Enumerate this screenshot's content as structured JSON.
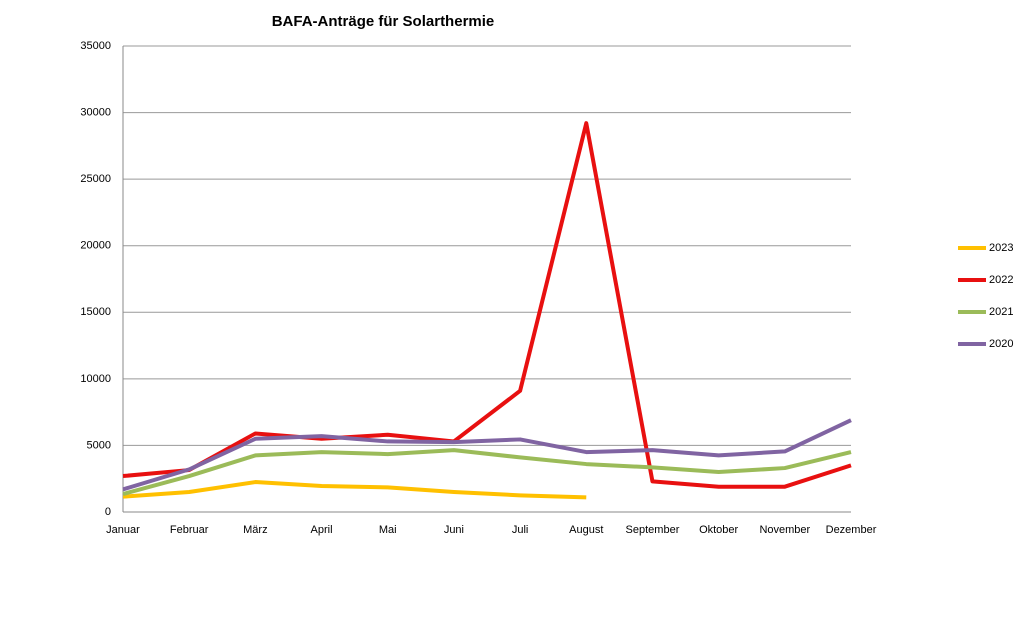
{
  "chart_data": {
    "type": "line",
    "title": "BAFA-Anträge  für Solarthermie",
    "categories": [
      "Januar",
      "Februar",
      "März",
      "April",
      "Mai",
      "Juni",
      "Juli",
      "August",
      "September",
      "Oktober",
      "November",
      "Dezember"
    ],
    "series": [
      {
        "name": "2023",
        "color": "#ffc000",
        "values": [
          1150,
          1500,
          2250,
          1950,
          1850,
          1500,
          1250,
          1100,
          null,
          null,
          null,
          null
        ]
      },
      {
        "name": "2022",
        "color": "#e81010",
        "values": [
          2700,
          3150,
          5900,
          5500,
          5800,
          5300,
          9100,
          29200,
          2300,
          1900,
          1900,
          3500
        ]
      },
      {
        "name": "2021",
        "color": "#9bbb59",
        "values": [
          1350,
          2700,
          4250,
          4500,
          4350,
          4650,
          4100,
          3600,
          3350,
          3000,
          3300,
          4500
        ]
      },
      {
        "name": "2020",
        "color": "#8064a2",
        "values": [
          1700,
          3200,
          5500,
          5700,
          5300,
          5250,
          5450,
          4500,
          4650,
          4250,
          4550,
          6900
        ]
      }
    ],
    "ylim": [
      0,
      35000
    ],
    "yticks": [
      0,
      5000,
      10000,
      15000,
      20000,
      25000,
      30000,
      35000
    ],
    "grid": true,
    "legend": "right"
  }
}
